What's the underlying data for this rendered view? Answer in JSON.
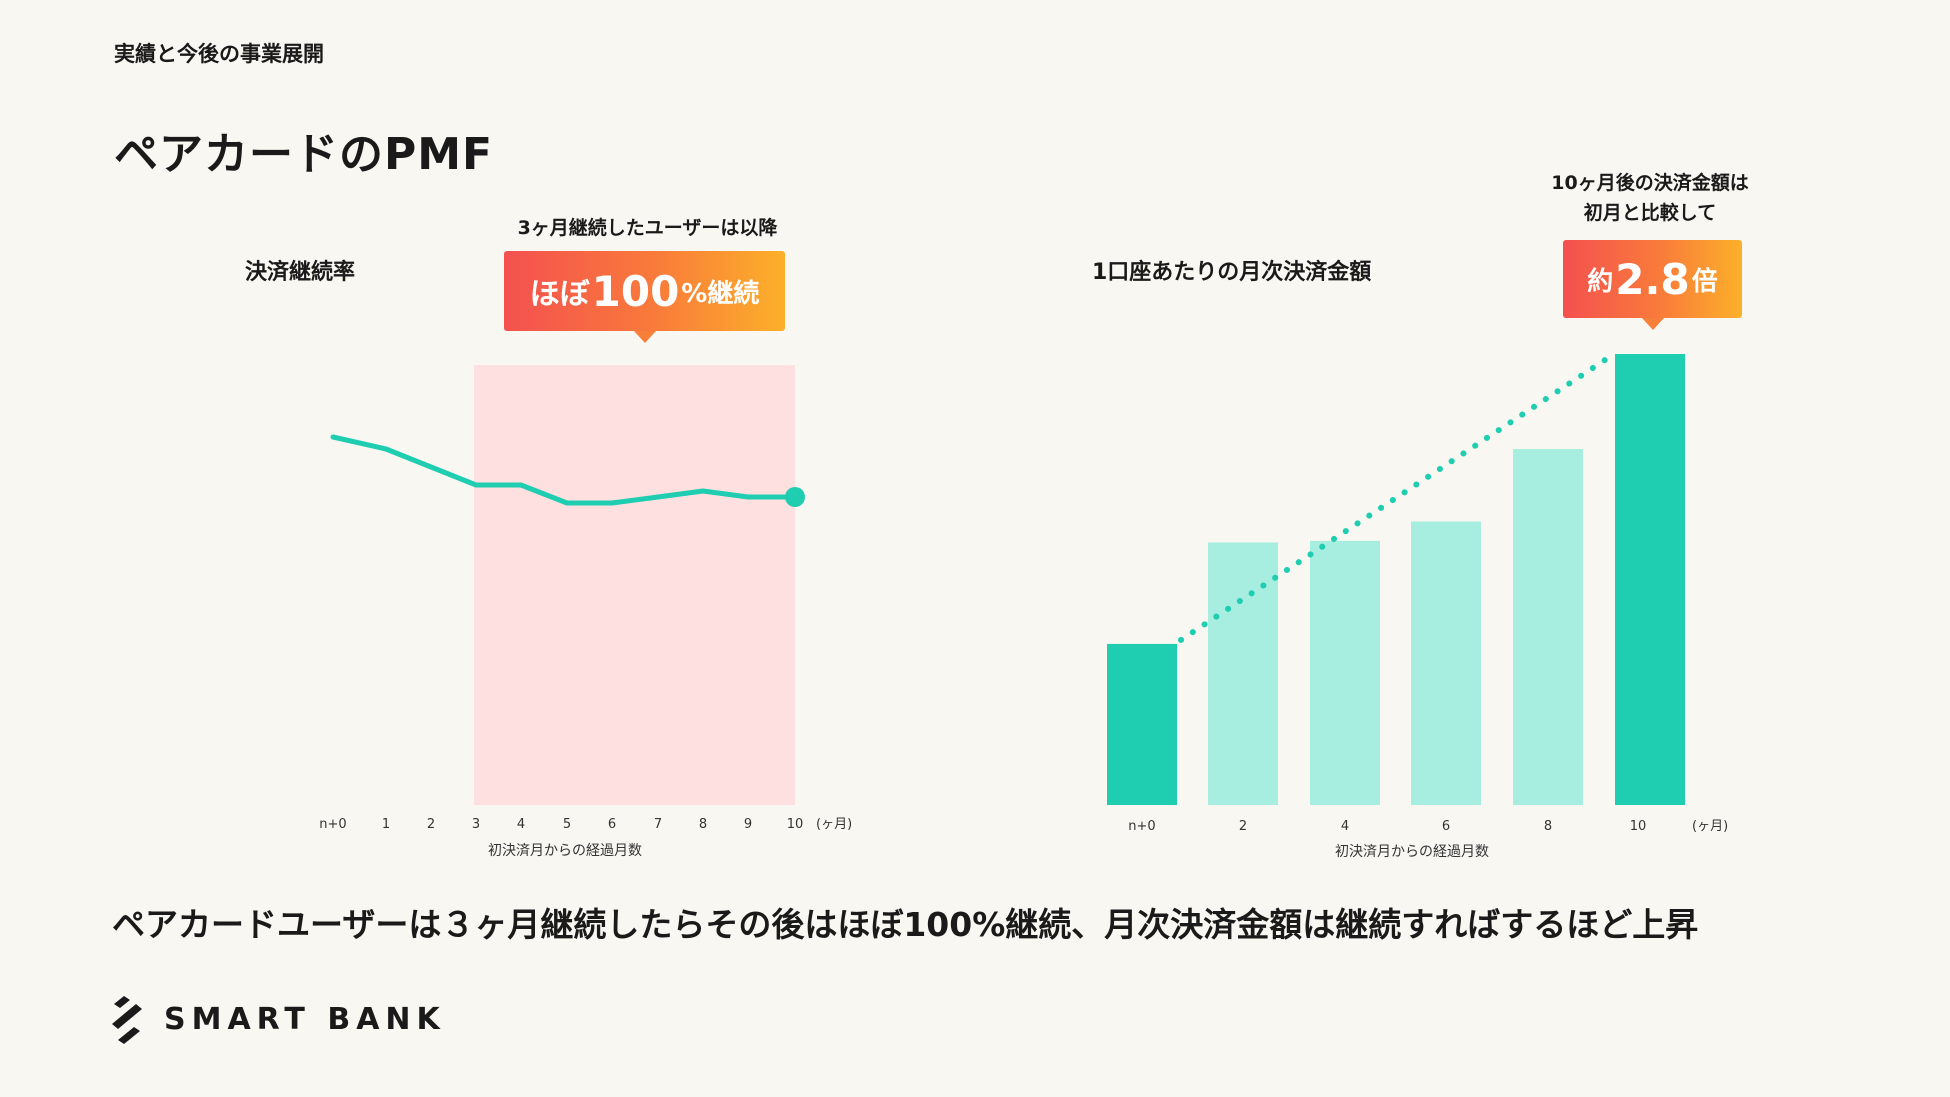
{
  "header": {
    "eyebrow": "実績と今後の事業展開",
    "title": "ペアカードのPMF"
  },
  "left_chart": {
    "title": "決済継続率",
    "note": "3ヶ月継続したユーザーは以降",
    "callout_a": "ほぼ",
    "callout_b": "100",
    "callout_c": "%継続",
    "unit": "(ヶ月)",
    "xlabel": "初決済月からの経過月数"
  },
  "right_chart": {
    "title": "1口座あたりの月次決済金額",
    "note_line1": "10ヶ月後の決済金額は",
    "note_line2": "初月と比較して",
    "callout_a": "約",
    "callout_b": "2.8",
    "callout_c": "倍",
    "unit": "(ヶ月)",
    "xlabel": "初決済月からの経過月数"
  },
  "summary": "ペアカードユーザーは３ヶ月継続したらその後はほぼ100%継続、月次決済金額は継続すればするほど上昇",
  "logo": {
    "text": "SMART BANK",
    "icon": "smartbank-logo-icon"
  },
  "colors": {
    "teal": "#1fcdb1",
    "teal_light": "#a7ede0",
    "highlight": "#fde0df",
    "callout_start": "#f4504f",
    "callout_end": "#fcb02a"
  },
  "chart_data": [
    {
      "type": "line",
      "title": "決済継続率",
      "xlabel": "初決済月からの経過月数",
      "x": [
        "n+0",
        "1",
        "2",
        "3",
        "4",
        "5",
        "6",
        "7",
        "8",
        "9",
        "10"
      ],
      "y": [
        95,
        93,
        90,
        87,
        87,
        84,
        84,
        85,
        86,
        85,
        85
      ],
      "ylim": [
        0,
        100
      ],
      "highlight_range": [
        "3",
        "10"
      ],
      "grid": false,
      "legend": "none"
    },
    {
      "type": "bar",
      "title": "1口座あたりの月次決済金額",
      "xlabel": "初決済月からの経過月数",
      "categories": [
        "n+0",
        "2",
        "4",
        "6",
        "8",
        "10"
      ],
      "values": [
        1.0,
        1.63,
        1.64,
        1.76,
        2.21,
        2.8
      ],
      "ylim": [
        0,
        3
      ],
      "trend_from": "n+0",
      "trend_to": "10",
      "grid": false,
      "legend": "none"
    }
  ]
}
